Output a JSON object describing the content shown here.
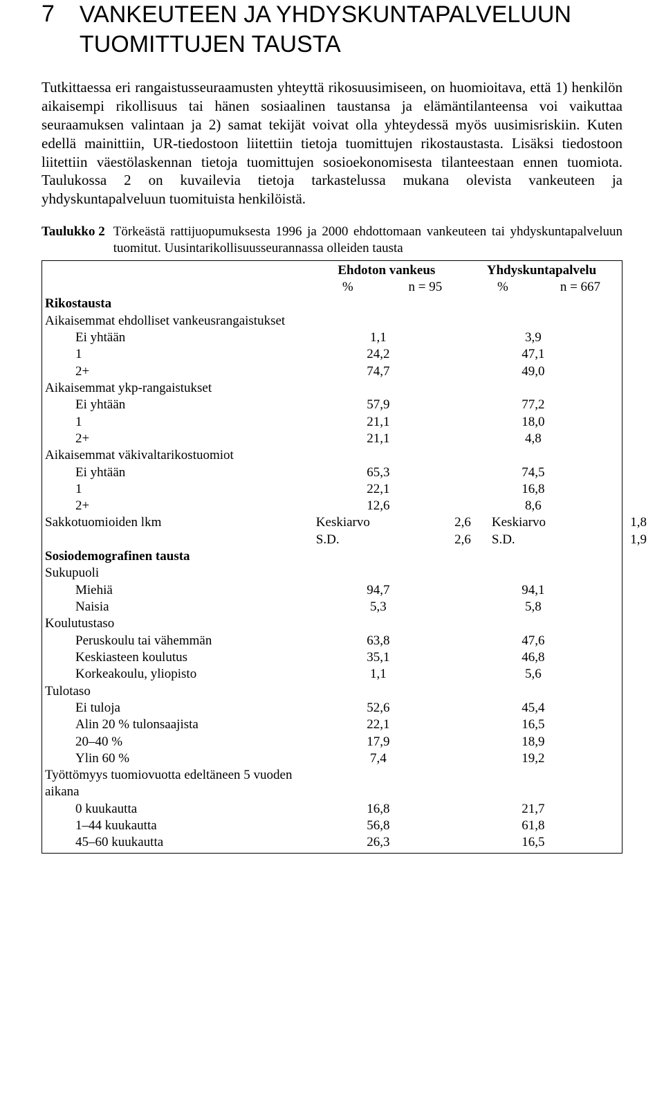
{
  "chapter": {
    "number": "7",
    "title_line1": "VANKEUTEEN JA YHDYSKUNTAPALVELUUN",
    "title_line2": "TUOMITTUJEN TAUSTA"
  },
  "paragraph": "Tutkittaessa eri rangaistusseuraamusten yhteyttä rikosuusimiseen, on huomioitava, että 1) henkilön aikaisempi rikollisuus tai hänen sosiaalinen taustansa ja elämäntilanteensa voi vaikuttaa seuraamuksen valintaan ja 2) samat tekijät voivat olla yhteydessä myös uusimisriskiin. Kuten edellä mainittiin, UR-tiedostoon liitettiin tietoja tuomittujen rikostaustasta. Lisäksi tiedostoon liitettiin väestölaskennan tietoja tuomittujen sosioekonomisesta tilanteestaan ennen tuomiota. Taulukossa 2 on kuvailevia tietoja tarkastelussa mukana olevista vankeuteen ja yhdyskuntapalveluun tuomituista henkilöistä.",
  "table": {
    "caption_label": "Taulukko 2",
    "caption_text": "Törkeästä rattijuopumuksesta 1996 ja 2000 ehdottomaan vankeuteen tai yhdyskuntapalveluun tuomitut. Uusintarikollisuusseurannassa olleiden tausta",
    "col1_header": "Ehdoton vankeus",
    "col2_header": "Yhdyskuntapalvelu",
    "sub_pct": "%",
    "sub_n1": "n = 95",
    "sub_n2": "n = 667",
    "section_rikostausta": "Rikostausta",
    "r1_label": "Aikaisemmat ehdolliset vankeusrangaistukset",
    "r1a_label": "Ei yhtään",
    "r1a_v1": "1,1",
    "r1a_v3": "3,9",
    "r1b_label": "1",
    "r1b_v1": "24,2",
    "r1b_v3": "47,1",
    "r1c_label": "2+",
    "r1c_v1": "74,7",
    "r1c_v3": "49,0",
    "r2_label": "Aikaisemmat ykp-rangaistukset",
    "r2a_label": "Ei yhtään",
    "r2a_v1": "57,9",
    "r2a_v3": "77,2",
    "r2b_label": "1",
    "r2b_v1": "21,1",
    "r2b_v3": "18,0",
    "r2c_label": "2+",
    "r2c_v1": "21,1",
    "r2c_v3": "4,8",
    "r3_label": "Aikaisemmat väkivaltarikostuomiot",
    "r3a_label": "Ei yhtään",
    "r3a_v1": "65,3",
    "r3a_v3": "74,5",
    "r3b_label": "1",
    "r3b_v1": "22,1",
    "r3b_v3": "16,8",
    "r3c_label": "2+",
    "r3c_v1": "12,6",
    "r3c_v3": "8,6",
    "r4_label": "Sakkotuomioiden lkm",
    "r4_v1a": "Keskiarvo",
    "r4_v1b": "2,6",
    "r4_v1c": "Keskiarvo",
    "r4_v1d": "1,8",
    "r4_v2a": "S.D.",
    "r4_v2b": "2,6",
    "r4_v2c": "S.D.",
    "r4_v2d": "1,9",
    "section_sosio": "Sosiodemografinen tausta",
    "r5_label": "Sukupuoli",
    "r5a_label": "Miehiä",
    "r5a_v1": "94,7",
    "r5a_v3": "94,1",
    "r5b_label": "Naisia",
    "r5b_v1": "5,3",
    "r5b_v3": "5,8",
    "r6_label": "Koulutustaso",
    "r6a_label": "Peruskoulu tai vähemmän",
    "r6a_v1": "63,8",
    "r6a_v3": "47,6",
    "r6b_label": "Keskiasteen koulutus",
    "r6b_v1": "35,1",
    "r6b_v3": "46,8",
    "r6c_label": "Korkeakoulu, yliopisto",
    "r6c_v1": "1,1",
    "r6c_v3": "5,6",
    "r7_label": "Tulotaso",
    "r7a_label": "Ei tuloja",
    "r7a_v1": "52,6",
    "r7a_v3": "45,4",
    "r7b_label": "Alin 20 % tulonsaajista",
    "r7b_v1": "22,1",
    "r7b_v3": "16,5",
    "r7c_label": "20–40 %",
    "r7c_v1": "17,9",
    "r7c_v3": "18,9",
    "r7d_label": "Ylin 60 %",
    "r7d_v1": "7,4",
    "r7d_v3": "19,2",
    "r8_label": "Työttömyys tuomiovuotta edeltäneen 5 vuoden aikana",
    "r8a_label": "0 kuukautta",
    "r8a_v1": "16,8",
    "r8a_v3": "21,7",
    "r8b_label": "1–44 kuukautta",
    "r8b_v1": "56,8",
    "r8b_v3": "61,8",
    "r8c_label": "45–60 kuukautta",
    "r8c_v1": "26,3",
    "r8c_v3": "16,5"
  }
}
